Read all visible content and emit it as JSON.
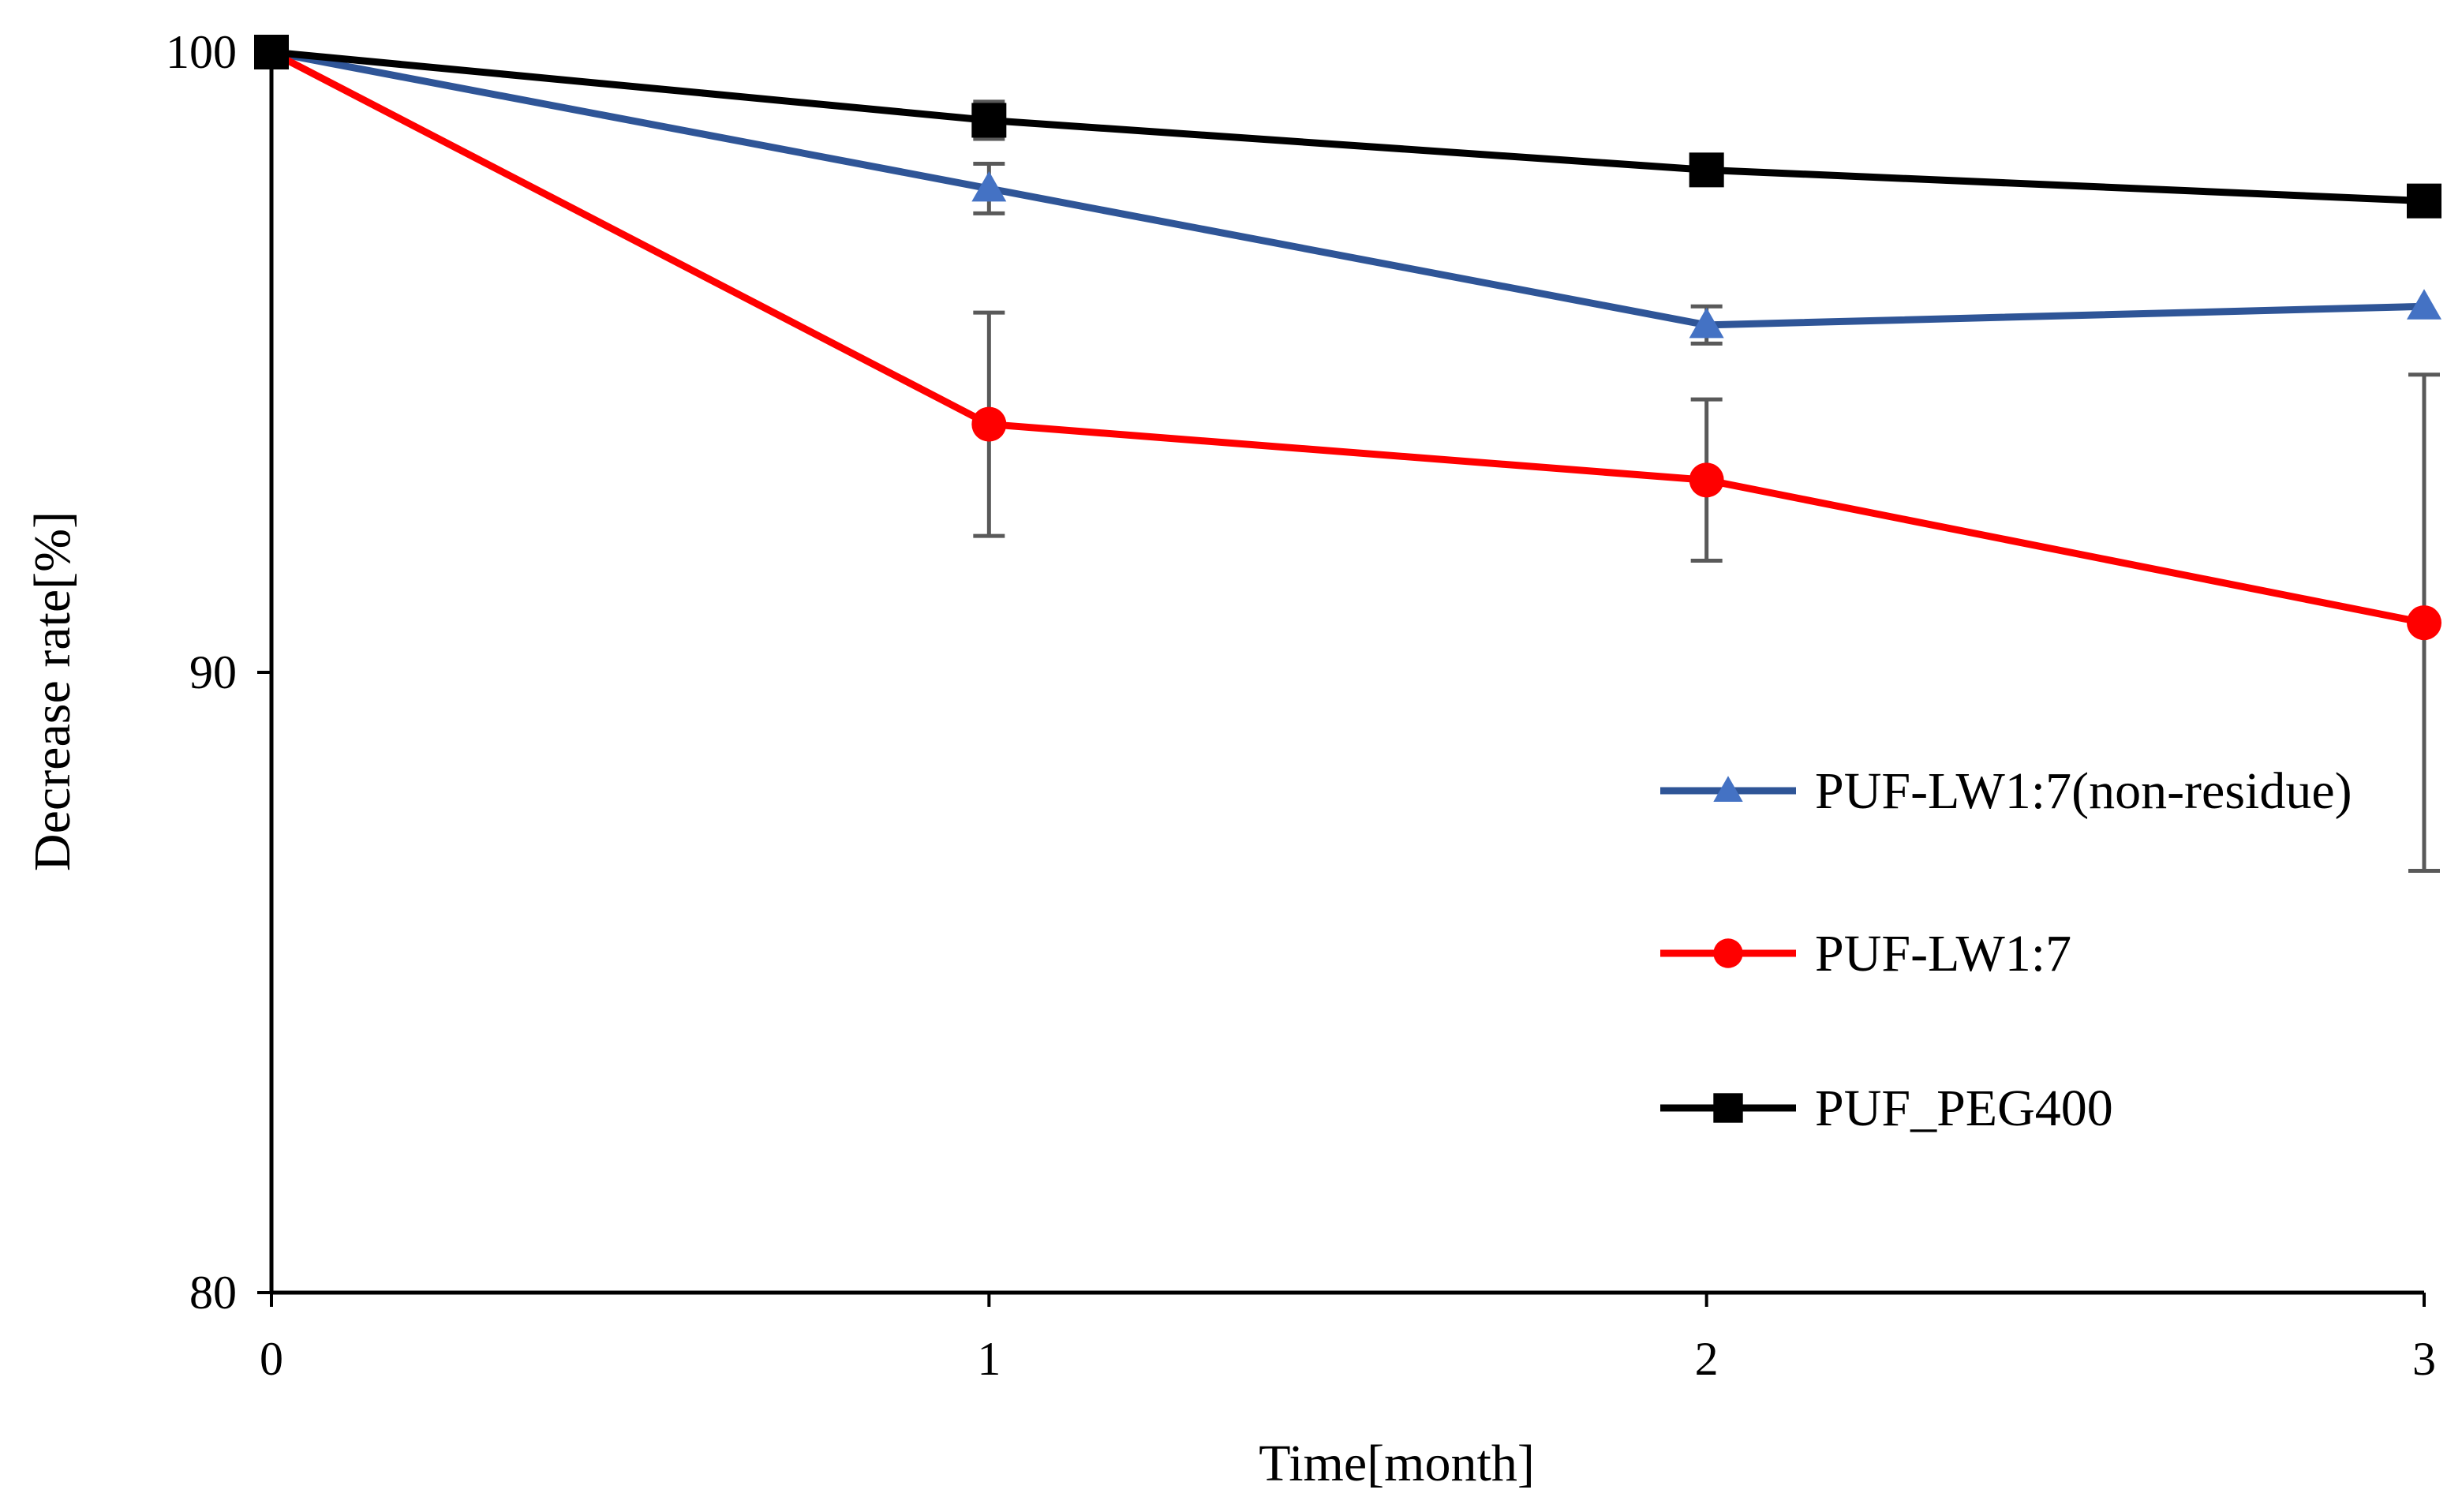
{
  "chart_data": {
    "type": "line",
    "title": "",
    "xlabel": "Time[month]",
    "ylabel": "Decrease rate[%]",
    "x": [
      0,
      1,
      2,
      3
    ],
    "xticks": [
      "0",
      "1",
      "2",
      "3"
    ],
    "xlim": [
      0,
      3
    ],
    "yticks": [
      "80",
      "90",
      "100"
    ],
    "ytick_values": [
      80,
      90,
      100
    ],
    "ylim": [
      80,
      100
    ],
    "grid": false,
    "legend_position": "center-right",
    "series": [
      {
        "name": "PUF-LW1:7(non-residue)",
        "values": [
          100,
          97.8,
          95.6,
          95.9
        ],
        "error": [
          0,
          0.4,
          0.3,
          0
        ],
        "color": "#4472c4",
        "line_color": "#2f5597",
        "marker": "triangle"
      },
      {
        "name": "PUF-LW1:7",
        "values": [
          100,
          94.0,
          93.1,
          90.8
        ],
        "error": [
          0,
          1.8,
          1.3,
          4.0
        ],
        "color": "#ff0000",
        "line_color": "#ff0000",
        "marker": "circle"
      },
      {
        "name": "PUF_PEG400",
        "values": [
          100,
          98.9,
          98.1,
          97.6
        ],
        "error": [
          0,
          0.3,
          0,
          0
        ],
        "color": "#000000",
        "line_color": "#000000",
        "marker": "square"
      }
    ],
    "errorbar_color": "#595959"
  }
}
